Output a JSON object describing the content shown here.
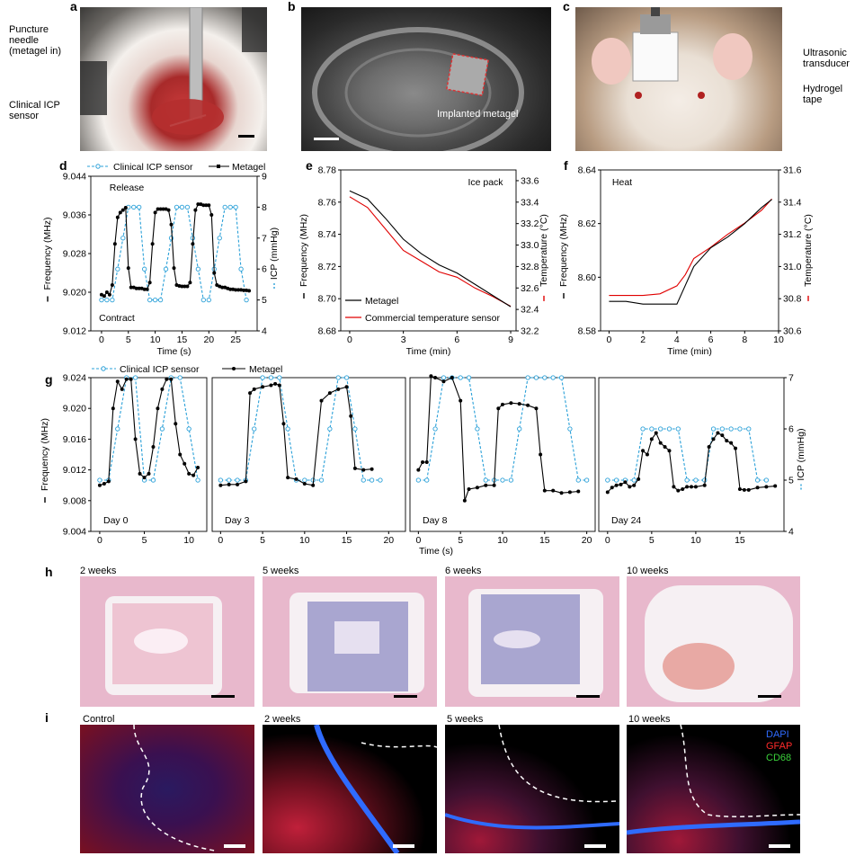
{
  "panels": {
    "a": "a",
    "b": "b",
    "c": "c",
    "d": "d",
    "e": "e",
    "f": "f",
    "g": "g",
    "h": "h",
    "i": "i"
  },
  "panel_a": {
    "label_needle": "Puncture needle (metagel in)",
    "label_sensor": "Clinical ICP sensor"
  },
  "panel_b": {
    "label": "Implanted metagel"
  },
  "panel_c": {
    "label_transducer": "Ultrasonic transducer",
    "label_tape": "Hydrogel tape"
  },
  "panel_h": {
    "titles": [
      "2 weeks",
      "5 weeks",
      "6 weeks",
      "10 weeks"
    ]
  },
  "panel_i": {
    "titles": [
      "Control",
      "2 weeks",
      "5 weeks",
      "10 weeks"
    ],
    "legend": [
      "DAPI",
      "GFAP",
      "CD68"
    ],
    "legend_colors": [
      "#2f6bff",
      "#ff2a2a",
      "#3bd13b"
    ]
  },
  "colors": {
    "metagel": "#000000",
    "icp": "#2aa0d8",
    "temp": "#e00000"
  },
  "chart_data": [
    {
      "id": "d",
      "type": "line",
      "legend": [
        "Clinical ICP sensor",
        "Metagel"
      ],
      "annotations": [
        "Release",
        "Contract"
      ],
      "xlabel": "Time (s)",
      "ylabel": "Frequency (MHz)",
      "y2label": "ICP (mmHg)",
      "xlim": [
        -2,
        29
      ],
      "ylim": [
        9.012,
        9.044
      ],
      "y2lim": [
        4,
        9
      ],
      "xticks": [
        0,
        5,
        10,
        15,
        20,
        25
      ],
      "yticks": [
        9.012,
        9.02,
        9.028,
        9.036,
        9.044
      ],
      "y2ticks": [
        4,
        5,
        6,
        7,
        8,
        9
      ],
      "series": [
        {
          "name": "Metagel",
          "axis": "y1",
          "x": [
            0,
            0.5,
            1,
            1.5,
            2,
            2.5,
            3,
            3.5,
            4,
            4.5,
            5,
            5.5,
            6,
            6.5,
            7,
            7.5,
            8,
            8.5,
            9,
            9.5,
            10,
            10.5,
            11,
            11.5,
            12,
            12.5,
            13,
            13.5,
            14,
            14.5,
            15,
            15.5,
            16,
            16.5,
            17,
            17.5,
            18,
            18.5,
            19,
            19.5,
            20,
            20.5,
            21,
            21.5,
            22,
            22.5,
            23,
            23.5,
            24,
            24.5,
            25,
            25.5,
            26,
            26.5,
            27,
            27.5
          ],
          "y": [
            9.0195,
            9.0192,
            9.02,
            9.0195,
            9.0215,
            9.03,
            9.0355,
            9.0365,
            9.037,
            9.0375,
            9.025,
            9.021,
            9.021,
            9.0208,
            9.0208,
            9.0208,
            9.0206,
            9.0206,
            9.022,
            9.03,
            9.0365,
            9.0372,
            9.0372,
            9.0372,
            9.0372,
            9.037,
            9.034,
            9.025,
            9.0215,
            9.0213,
            9.0212,
            9.0212,
            9.0212,
            9.022,
            9.03,
            9.037,
            9.0382,
            9.0382,
            9.038,
            9.038,
            9.038,
            9.036,
            9.024,
            9.0215,
            9.0212,
            9.021,
            9.021,
            9.0208,
            9.0206,
            9.0206,
            9.0205,
            9.0205,
            9.0205,
            9.0204,
            9.0204,
            9.0203
          ]
        },
        {
          "name": "Clinical ICP sensor",
          "axis": "y2",
          "x": [
            0,
            1,
            2,
            3,
            4,
            5,
            6,
            7,
            8,
            9,
            10,
            11,
            12,
            13,
            14,
            15,
            16,
            17,
            18,
            19,
            20,
            21,
            22,
            23,
            24,
            25,
            26,
            27
          ],
          "y": [
            5,
            5,
            5,
            6,
            7,
            8,
            8,
            8,
            6,
            5,
            5,
            5,
            6,
            7,
            8,
            8,
            8,
            7,
            6,
            5,
            5,
            6,
            7,
            8,
            8,
            8,
            6,
            5
          ]
        }
      ]
    },
    {
      "id": "e",
      "type": "line",
      "annotation": "Ice pack",
      "legend": [
        "Metagel",
        "Commercial temperature sensor"
      ],
      "xlabel": "Time (min)",
      "ylabel": "Frequency (MHz)",
      "y2label": "Temperature (°C)",
      "xlim": [
        -0.5,
        9.3
      ],
      "ylim": [
        8.68,
        8.78
      ],
      "y2lim": [
        32.2,
        33.7
      ],
      "xticks": [
        0,
        3,
        6,
        9
      ],
      "yticks": [
        8.68,
        8.7,
        8.72,
        8.74,
        8.76,
        8.78
      ],
      "y2ticks": [
        32.2,
        32.4,
        32.6,
        32.8,
        33.0,
        33.2,
        33.4,
        33.6
      ],
      "series": [
        {
          "name": "Metagel",
          "axis": "y1",
          "x": [
            0,
            1,
            2,
            3,
            4,
            5,
            6,
            7,
            8,
            9
          ],
          "y": [
            8.767,
            8.762,
            8.75,
            8.737,
            8.728,
            8.721,
            8.716,
            8.709,
            8.702,
            8.695
          ]
        },
        {
          "name": "Commercial temperature sensor",
          "axis": "y2",
          "x": [
            0,
            1,
            2,
            3,
            4,
            5,
            6,
            7,
            8,
            9
          ],
          "y": [
            33.45,
            33.35,
            33.15,
            32.95,
            32.85,
            32.75,
            32.7,
            32.6,
            32.52,
            32.43
          ]
        }
      ]
    },
    {
      "id": "f",
      "type": "line",
      "annotation": "Heat",
      "xlabel": "Time (min)",
      "ylabel": "Frequency (MHz)",
      "y2label": "Temperature (°C)",
      "xlim": [
        -0.5,
        10
      ],
      "ylim": [
        8.58,
        8.64
      ],
      "y2lim": [
        30.6,
        31.6
      ],
      "xticks": [
        0,
        2,
        4,
        6,
        8,
        10
      ],
      "yticks": [
        8.58,
        8.6,
        8.62,
        8.64
      ],
      "y2ticks": [
        30.6,
        30.8,
        31.0,
        31.2,
        31.4,
        31.6
      ],
      "series": [
        {
          "name": "Metagel",
          "axis": "y1",
          "x": [
            0,
            1,
            2,
            3,
            4,
            4.5,
            5,
            6,
            7,
            8,
            9,
            9.6
          ],
          "y": [
            8.591,
            8.591,
            8.59,
            8.59,
            8.59,
            8.597,
            8.604,
            8.611,
            8.615,
            8.62,
            8.626,
            8.629
          ]
        },
        {
          "name": "Commercial temperature sensor",
          "axis": "y2",
          "x": [
            0,
            1,
            2,
            3,
            4,
            4.5,
            5,
            6,
            7,
            8,
            9,
            9.6
          ],
          "y": [
            30.82,
            30.82,
            30.82,
            30.83,
            30.88,
            30.95,
            31.05,
            31.12,
            31.2,
            31.27,
            31.35,
            31.42
          ]
        }
      ]
    },
    {
      "id": "g",
      "type": "line",
      "legend": [
        "Clinical ICP sensor",
        "Metagel"
      ],
      "xlabel": "Time (s)",
      "ylabel": "Frequency (MHz)",
      "y2label": "ICP (mmHg)",
      "ylim": [
        9.004,
        9.024
      ],
      "y2lim": [
        4,
        7
      ],
      "yticks": [
        9.004,
        9.008,
        9.012,
        9.016,
        9.02,
        9.024
      ],
      "y2ticks": [
        4,
        5,
        6,
        7
      ],
      "subplots": [
        {
          "label": "Day 0",
          "xlim": [
            -1,
            12
          ],
          "xticks": [
            0,
            5,
            10
          ],
          "metagel": {
            "x": [
              0,
              0.5,
              1,
              1.5,
              2,
              2.5,
              3,
              3.5,
              4,
              4.5,
              5,
              5.5,
              6,
              6.5,
              7,
              7.5,
              8,
              8.5,
              9,
              9.5,
              10,
              10.5,
              11
            ],
            "y": [
              9.01,
              9.0102,
              9.0105,
              9.02,
              9.0235,
              9.0225,
              9.0238,
              9.0238,
              9.016,
              9.0115,
              9.011,
              9.0115,
              9.015,
              9.02,
              9.0225,
              9.0238,
              9.0238,
              9.018,
              9.014,
              9.0128,
              9.0115,
              9.0113,
              9.0123
            ]
          },
          "icp": {
            "x": [
              0,
              1,
              2,
              3,
              4,
              5,
              6,
              7,
              8,
              9,
              10,
              11
            ],
            "y": [
              5,
              5,
              6,
              7,
              7,
              5,
              5,
              6,
              7,
              7,
              6,
              5
            ]
          }
        },
        {
          "label": "Day 3",
          "xlim": [
            -1,
            22
          ],
          "xticks": [
            0,
            5,
            10,
            15,
            20
          ],
          "metagel": {
            "x": [
              0,
              1,
              2,
              3,
              3.5,
              4,
              5,
              6,
              6.5,
              7,
              7.5,
              8,
              9,
              10,
              11,
              12,
              13,
              14,
              15,
              15.5,
              16,
              17,
              18
            ],
            "y": [
              9.01,
              9.0101,
              9.0101,
              9.0105,
              9.022,
              9.0225,
              9.0228,
              9.023,
              9.0232,
              9.023,
              9.018,
              9.011,
              9.0108,
              9.0102,
              9.01,
              9.021,
              9.022,
              9.0225,
              9.0228,
              9.019,
              9.0122,
              9.012,
              9.0121
            ]
          },
          "icp": {
            "x": [
              0,
              1,
              2,
              3,
              4,
              5,
              6,
              7,
              8,
              9,
              10,
              11,
              12,
              13,
              14,
              15,
              16,
              17,
              18,
              19
            ],
            "y": [
              5,
              5,
              5,
              5,
              6,
              7,
              7,
              7,
              6,
              5,
              5,
              5,
              5,
              6,
              7,
              7,
              6,
              5,
              5,
              5
            ]
          }
        },
        {
          "label": "Day 8",
          "xlim": [
            -1,
            21
          ],
          "xticks": [
            0,
            5,
            10,
            15,
            20
          ],
          "metagel": {
            "x": [
              0,
              0.5,
              1,
              1.5,
              2,
              3,
              4,
              5,
              5.5,
              6,
              7,
              8,
              9,
              9.5,
              10,
              11,
              12,
              13,
              14,
              14.5,
              15,
              16,
              17,
              18,
              19
            ],
            "y": [
              9.012,
              9.013,
              9.013,
              9.0242,
              9.024,
              9.0235,
              9.024,
              9.021,
              9.008,
              9.0095,
              9.0097,
              9.01,
              9.01,
              9.02,
              9.0205,
              9.0207,
              9.0206,
              9.0204,
              9.02,
              9.014,
              9.0093,
              9.0093,
              9.009,
              9.0091,
              9.0092
            ]
          },
          "icp": {
            "x": [
              0,
              1,
              2,
              3,
              4,
              5,
              6,
              7,
              8,
              9,
              10,
              11,
              12,
              13,
              14,
              15,
              16,
              17,
              18,
              19,
              20
            ],
            "y": [
              5,
              5,
              6,
              7,
              7,
              7,
              7,
              6,
              5,
              5,
              5,
              5,
              6,
              7,
              7,
              7,
              7,
              7,
              6,
              5,
              5
            ]
          }
        },
        {
          "label": "Day 24",
          "xlim": [
            -1,
            20
          ],
          "xticks": [
            0,
            5,
            10,
            15
          ],
          "metagel": {
            "x": [
              0,
              0.5,
              1,
              1.5,
              2,
              2.5,
              3,
              3.5,
              4,
              4.5,
              5,
              5.5,
              6,
              6.5,
              7,
              7.5,
              8,
              8.5,
              9,
              9.5,
              10,
              11,
              11.5,
              12,
              12.5,
              13,
              13.5,
              14,
              14.5,
              15,
              15.5,
              16,
              17,
              18,
              19
            ],
            "y": [
              9.0091,
              9.0097,
              9.01,
              9.0101,
              9.0104,
              9.0098,
              9.01,
              9.0108,
              9.0145,
              9.014,
              9.016,
              9.0168,
              9.0155,
              9.015,
              9.0145,
              9.0098,
              9.0093,
              9.0095,
              9.0098,
              9.0098,
              9.0098,
              9.01,
              9.015,
              9.016,
              9.0168,
              9.0165,
              9.0158,
              9.0155,
              9.0148,
              9.0095,
              9.0094,
              9.0094,
              9.0097,
              9.0098,
              9.0099
            ]
          },
          "icp": {
            "x": [
              0,
              1,
              2,
              3,
              4,
              5,
              6,
              7,
              8,
              9,
              10,
              11,
              12,
              13,
              14,
              15,
              16,
              17,
              18
            ],
            "y": [
              5,
              5,
              5,
              5,
              6,
              6,
              6,
              6,
              6,
              5,
              5,
              5,
              6,
              6,
              6,
              6,
              6,
              5,
              5
            ]
          }
        }
      ]
    }
  ]
}
